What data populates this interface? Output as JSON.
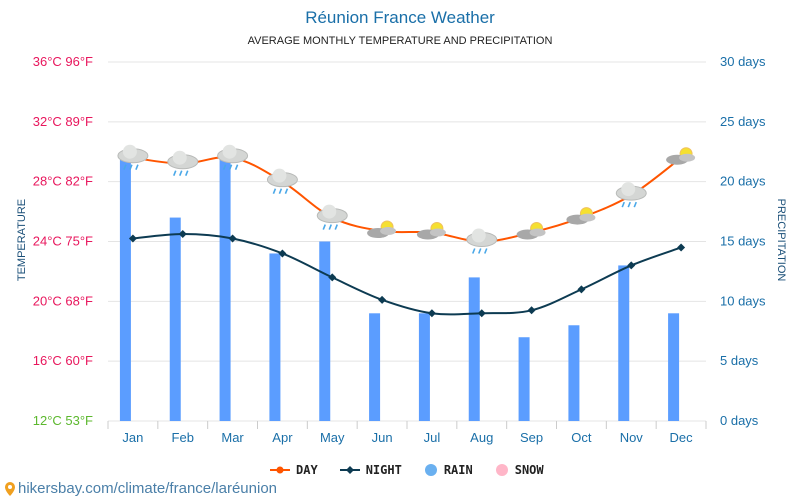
{
  "chart_data": {
    "type": "bar+line",
    "title": "Réunion France Weather",
    "subtitle": "AVERAGE MONTHLY TEMPERATURE AND PRECIPITATION",
    "ylabel_left": "TEMPERATURE",
    "ylabel_right": "PRECIPITATION",
    "categories": [
      "Jan",
      "Feb",
      "Mar",
      "Apr",
      "May",
      "Jun",
      "Jul",
      "Aug",
      "Sep",
      "Oct",
      "Nov",
      "Dec"
    ],
    "left_ticks": [
      "12°C 53°F",
      "16°C 60°F",
      "20°C 68°F",
      "24°C 75°F",
      "28°C 82°F",
      "32°C 89°F",
      "36°C 96°F"
    ],
    "left_tick_values": [
      12,
      16,
      20,
      24,
      28,
      32,
      36
    ],
    "right_ticks": [
      "0 days",
      "5 days",
      "10 days",
      "15 days",
      "20 days",
      "25 days",
      "30 days"
    ],
    "ylim_left": [
      12,
      36
    ],
    "ylim_right": [
      0,
      30
    ],
    "series": [
      {
        "name": "DAY",
        "type": "line",
        "color": "#ff5500",
        "values": [
          29.6,
          29.2,
          29.6,
          28.0,
          25.6,
          24.7,
          24.6,
          24.0,
          24.6,
          25.6,
          27.1,
          29.6
        ]
      },
      {
        "name": "NIGHT",
        "type": "line",
        "color": "#0d3b52",
        "values": [
          24.2,
          24.5,
          24.2,
          23.2,
          21.6,
          20.1,
          19.2,
          19.2,
          19.4,
          20.8,
          22.4,
          23.6
        ]
      },
      {
        "name": "RAIN",
        "type": "bar",
        "color": "#5b9dff",
        "values": [
          22,
          17,
          22,
          14,
          15,
          9,
          9,
          12,
          7,
          8,
          13,
          9
        ]
      },
      {
        "name": "SNOW",
        "type": "bar",
        "color": "#ffb6c8",
        "values": [
          0,
          0,
          0,
          0,
          0,
          0,
          0,
          0,
          0,
          0,
          0,
          0
        ]
      }
    ],
    "weather_icons": [
      "rain",
      "rain",
      "rain",
      "rain",
      "rain",
      "partly-sunny",
      "partly-sunny",
      "rain",
      "partly-sunny",
      "partly-sunny",
      "rain",
      "partly-sunny"
    ]
  },
  "footer": "hikersbay.com/climate/france/laréunion"
}
